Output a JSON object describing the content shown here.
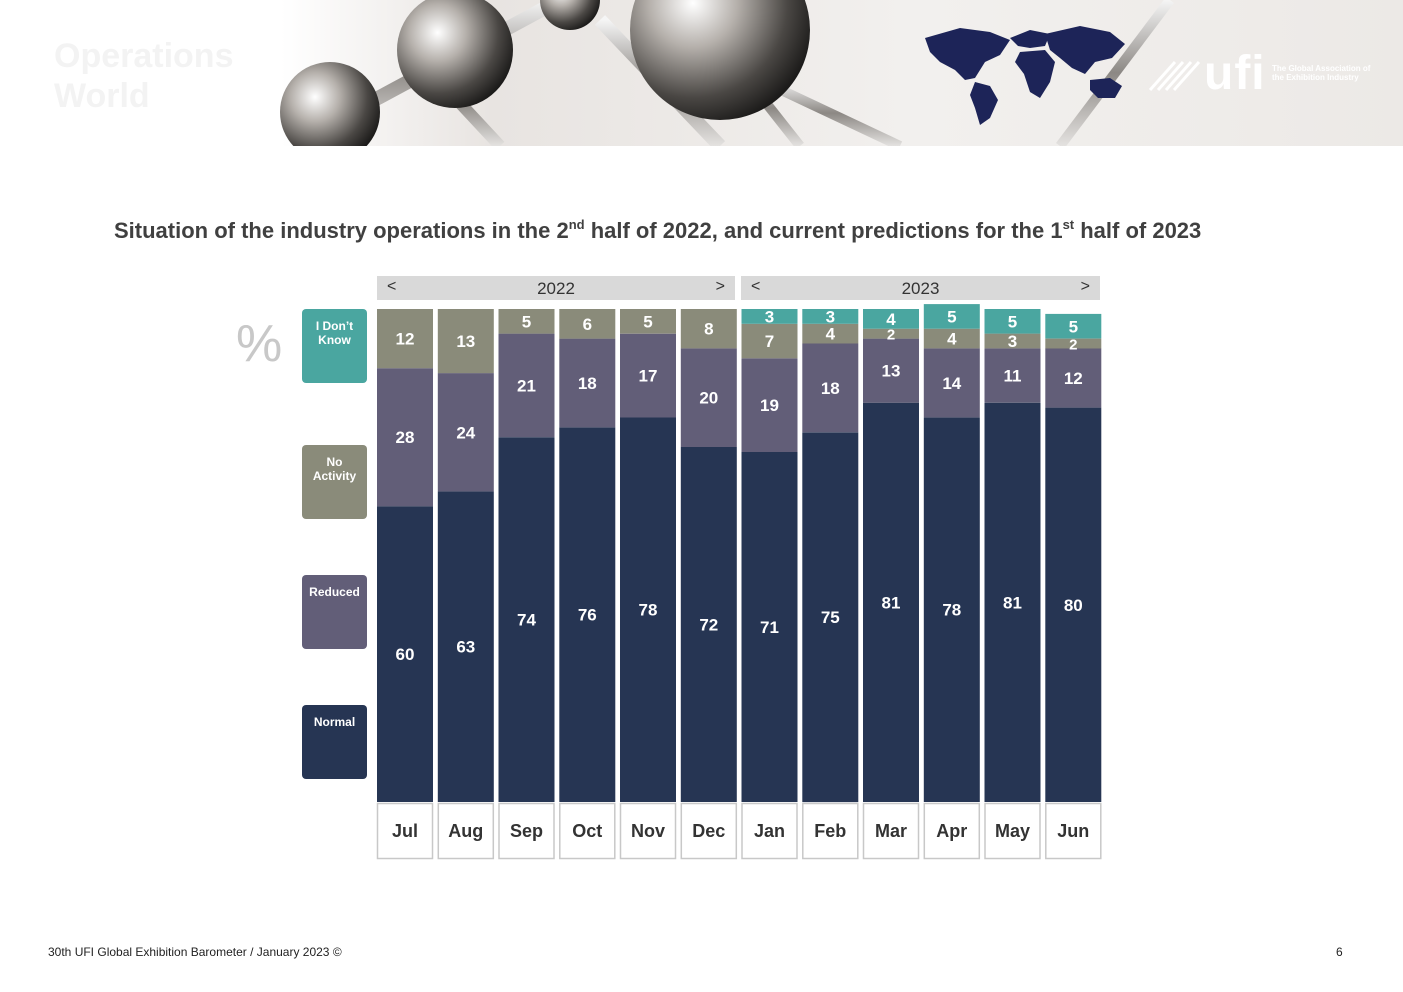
{
  "banner": {
    "title_line1": "Operations",
    "title_line2": "World",
    "logo_text": "ufi",
    "logo_tagline": "The Global Association of the Exhibition Industry"
  },
  "chart_title": {
    "part1": "Situation of the industry operations in the 2",
    "sup1": "nd",
    "part2": " half of 2022, and current predictions for the 1",
    "sup2": "st",
    "part3": "  half of 2023"
  },
  "percent_symbol": "%",
  "year_headers": [
    {
      "label": "2022",
      "prev": "<",
      "next": ">"
    },
    {
      "label": "2023",
      "prev": "<",
      "next": ">"
    }
  ],
  "legend": [
    {
      "label_line1": "I Don’t",
      "label_line2": "Know",
      "color": "#4aa6a0"
    },
    {
      "label_line1": "No",
      "label_line2": "Activity",
      "color": "#8a8b7a"
    },
    {
      "label_line1": "Reduced",
      "label_line2": "",
      "color": "#625e78"
    },
    {
      "label_line1": "Normal",
      "label_line2": "",
      "color": "#263553"
    }
  ],
  "chart_data": {
    "type": "bar",
    "stacked": true,
    "title": "Situation of the industry operations in the 2nd half of 2022, and current predictions for the 1st half of 2023",
    "unit": "%",
    "ylim": [
      0,
      100
    ],
    "categories": [
      "Jul",
      "Aug",
      "Sep",
      "Oct",
      "Nov",
      "Dec",
      "Jan",
      "Feb",
      "Mar",
      "Apr",
      "May",
      "Jun"
    ],
    "groups": [
      {
        "label": "2022",
        "categories": [
          "Jul",
          "Aug",
          "Sep",
          "Oct",
          "Nov",
          "Dec"
        ]
      },
      {
        "label": "2023",
        "categories": [
          "Jan",
          "Feb",
          "Mar",
          "Apr",
          "May",
          "Jun"
        ]
      }
    ],
    "series": [
      {
        "name": "Normal",
        "color": "#263553",
        "values": [
          60,
          63,
          74,
          76,
          78,
          72,
          71,
          75,
          81,
          78,
          81,
          80
        ]
      },
      {
        "name": "Reduced",
        "color": "#625e78",
        "values": [
          28,
          24,
          21,
          18,
          17,
          20,
          19,
          18,
          13,
          14,
          11,
          12
        ]
      },
      {
        "name": "No Activity",
        "color": "#8a8b7a",
        "values": [
          12,
          13,
          5,
          6,
          5,
          8,
          7,
          4,
          2,
          4,
          3,
          2
        ]
      },
      {
        "name": "I Don’t Know",
        "color": "#4aa6a0",
        "values": [
          null,
          null,
          null,
          null,
          null,
          null,
          3,
          3,
          4,
          5,
          5,
          5
        ]
      }
    ]
  },
  "footer": {
    "text": "30th UFI Global Exhibition Barometer / January 2023 ©",
    "page_number": "6"
  }
}
